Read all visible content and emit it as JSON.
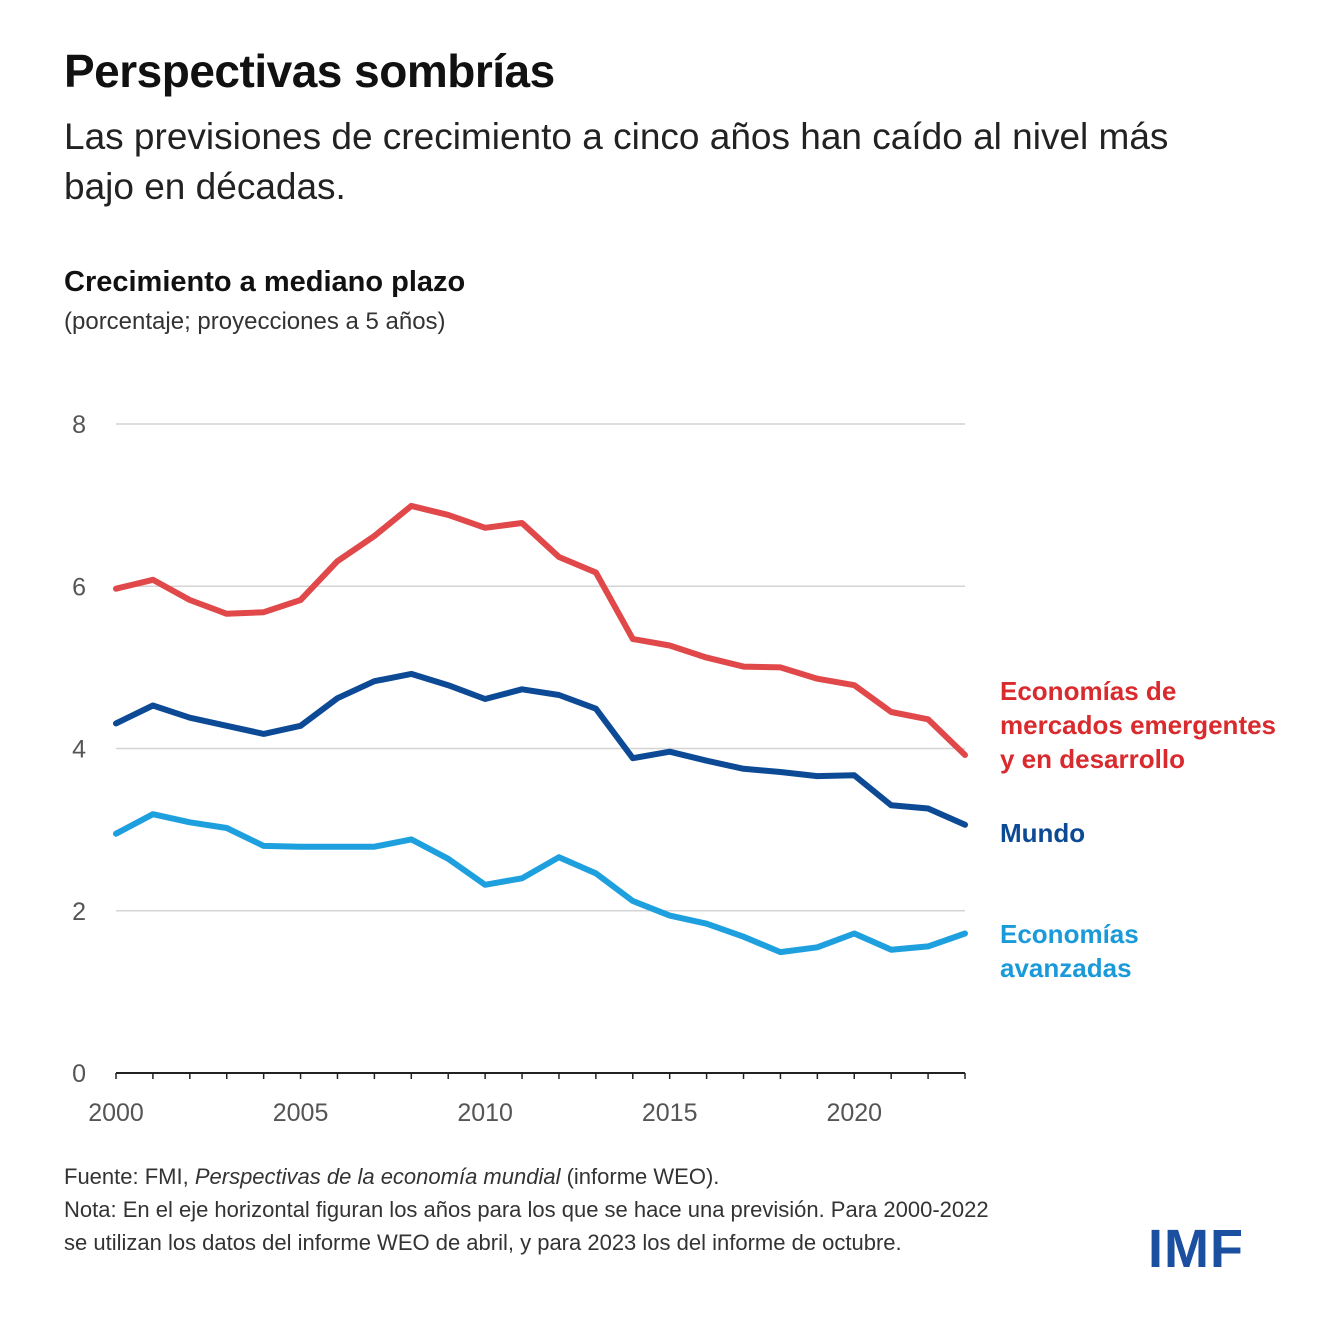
{
  "header": {
    "title": "Perspectivas sombrías",
    "subtitle": "Las previsiones de crecimiento a cinco años han caído al nivel más bajo en décadas."
  },
  "chart_data": {
    "type": "line",
    "title": "Crecimiento a mediano plazo",
    "subtitle": "(porcentaje; proyecciones a 5 años)",
    "xlabel": "",
    "ylabel": "",
    "x": [
      2000,
      2001,
      2002,
      2003,
      2004,
      2005,
      2006,
      2007,
      2008,
      2009,
      2010,
      2011,
      2012,
      2013,
      2014,
      2015,
      2016,
      2017,
      2018,
      2019,
      2020,
      2021,
      2022,
      2023
    ],
    "xlim": [
      2000,
      2023
    ],
    "ylim": [
      0,
      8
    ],
    "x_ticks": [
      "2000",
      "2005",
      "2010",
      "2015",
      "2020"
    ],
    "y_ticks": [
      "0",
      "2",
      "4",
      "6",
      "8"
    ],
    "grid": "horizontal",
    "legend": "direct labels at right end of lines",
    "series": [
      {
        "name": "Economías de mercados emergentes y en desarrollo",
        "label_lines": [
          "Economías de",
          "mercados emergentes",
          "y en desarrollo"
        ],
        "color": "#e0484a",
        "label_color": "#d92a2e",
        "values": [
          5.97,
          6.08,
          5.83,
          5.66,
          5.68,
          5.83,
          6.31,
          6.62,
          6.99,
          6.88,
          6.72,
          6.78,
          6.36,
          6.17,
          5.35,
          5.27,
          5.12,
          5.01,
          5.0,
          4.86,
          4.78,
          4.45,
          4.36,
          3.92
        ]
      },
      {
        "name": "Mundo",
        "label_lines": [
          "Mundo"
        ],
        "color": "#0d4a96",
        "label_color": "#0d4a96",
        "values": [
          4.31,
          4.53,
          4.38,
          4.28,
          4.18,
          4.28,
          4.62,
          4.83,
          4.92,
          4.78,
          4.61,
          4.73,
          4.66,
          4.49,
          3.88,
          3.96,
          3.85,
          3.75,
          3.71,
          3.66,
          3.67,
          3.3,
          3.26,
          3.06
        ]
      },
      {
        "name": "Economías avanzadas",
        "label_lines": [
          "Economías",
          "avanzadas"
        ],
        "color": "#1ea0df",
        "label_color": "#1a9ad8",
        "values": [
          2.95,
          3.19,
          3.09,
          3.02,
          2.8,
          2.79,
          2.79,
          2.79,
          2.88,
          2.64,
          2.32,
          2.4,
          2.66,
          2.46,
          2.12,
          1.94,
          1.84,
          1.68,
          1.49,
          1.55,
          1.72,
          1.52,
          1.56,
          1.72
        ]
      }
    ]
  },
  "footer": {
    "source_prefix": "Fuente: FMI, ",
    "source_italic": "Perspectivas de la economía mundial",
    "source_suffix": " (informe WEO).",
    "note_line1": "Nota: En el eje horizontal figuran los años para los que se hace una previsión. Para 2000-2022",
    "note_line2": "se utilizan los datos del informe WEO de abril, y para 2023 los del informe de octubre."
  },
  "logo": {
    "text": "IMF",
    "color": "#1b4fa0"
  }
}
